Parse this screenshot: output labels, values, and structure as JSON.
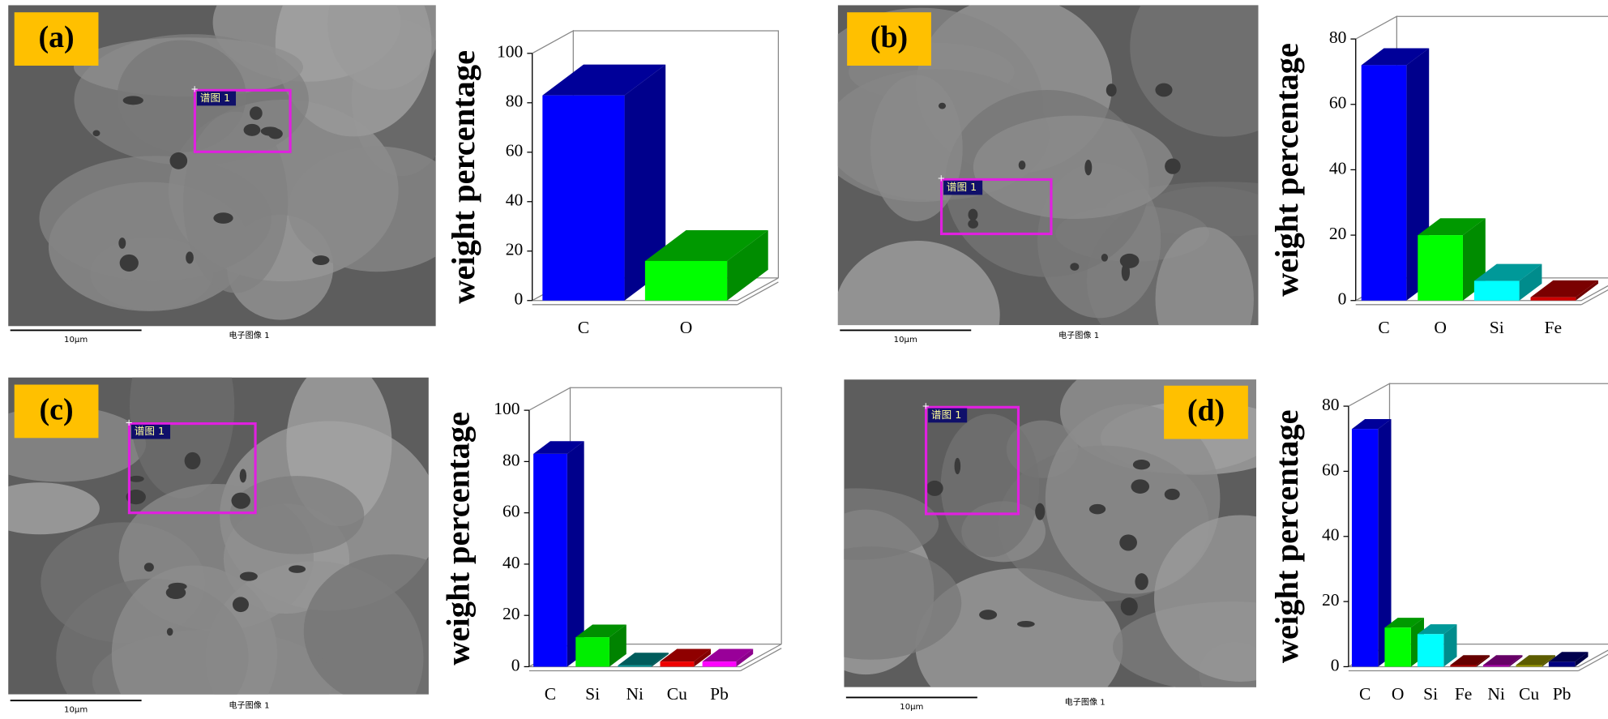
{
  "panels": [
    {
      "label": "(a)",
      "scale_bar": "10μm",
      "image_caption": "电子图像 1",
      "spectrum_label": "谱图 1"
    },
    {
      "label": "(b)",
      "scale_bar": "10μm",
      "image_caption": "电子图像 1",
      "spectrum_label": "谱图 1"
    },
    {
      "label": "(c)",
      "scale_bar": "10μm",
      "image_caption": "电子图像 1",
      "spectrum_label": "谱图 1"
    },
    {
      "label": "(d)",
      "scale_bar": "10μm",
      "image_caption": "电子图像 1",
      "spectrum_label": "谱图 1"
    }
  ],
  "chart_data": [
    {
      "type": "bar3d",
      "y_label": "weight percentage",
      "categories": [
        "C",
        "O"
      ],
      "values": [
        83,
        16
      ],
      "colors": [
        "#0000ff",
        "#00ff00"
      ],
      "ylim": [
        0,
        100
      ],
      "yticks": [
        0,
        20,
        40,
        60,
        80,
        100
      ]
    },
    {
      "type": "bar3d",
      "y_label": "weight percentage",
      "categories": [
        "C",
        "O",
        "Si",
        "Fe"
      ],
      "values": [
        72,
        20,
        6,
        1
      ],
      "colors": [
        "#0000ff",
        "#00ff00",
        "#00ffff",
        "#cc0000"
      ],
      "ylim": [
        0,
        80
      ],
      "yticks": [
        0,
        20,
        40,
        60,
        80
      ]
    },
    {
      "type": "bar3d",
      "y_label": "weight percentage",
      "categories": [
        "C",
        "Si",
        "Ni",
        "Cu",
        "Pb"
      ],
      "values": [
        83,
        11.5,
        0.5,
        2,
        2
      ],
      "colors": [
        "#0000ff",
        "#00ee00",
        "#009999",
        "#ee0000",
        "#ff00ff"
      ],
      "ylim": [
        0,
        100
      ],
      "yticks": [
        0,
        20,
        40,
        60,
        80,
        100
      ]
    },
    {
      "type": "bar3d",
      "y_label": "weight percentage",
      "categories": [
        "C",
        "O",
        "Si",
        "Fe",
        "Ni",
        "Cu",
        "Pb"
      ],
      "values": [
        73,
        12,
        10,
        0.5,
        0.5,
        0.5,
        1.5
      ],
      "colors": [
        "#0000ff",
        "#00ff00",
        "#00ffff",
        "#aa0000",
        "#aa00aa",
        "#999900",
        "#000080"
      ],
      "ylim": [
        0,
        80
      ],
      "yticks": [
        0,
        20,
        40,
        60,
        80
      ]
    }
  ]
}
